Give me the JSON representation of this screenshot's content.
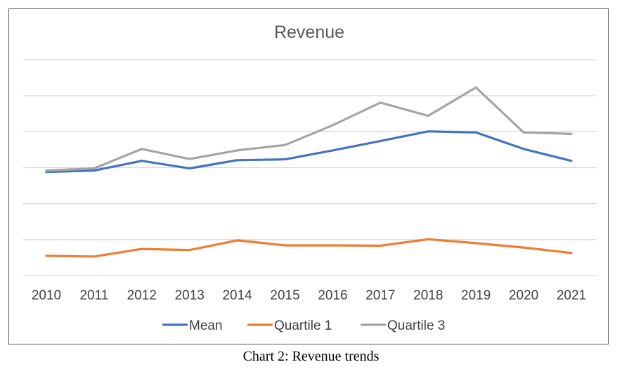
{
  "chart_data": {
    "type": "line",
    "title": "Revenue",
    "xlabel": "",
    "ylabel": "",
    "categories": [
      "2010",
      "2011",
      "2012",
      "2013",
      "2014",
      "2015",
      "2016",
      "2017",
      "2018",
      "2019",
      "2020",
      "2021"
    ],
    "ylim": [
      0,
      6
    ],
    "grid": true,
    "y_tick_labels_shown": false,
    "legend_position": "bottom",
    "series": [
      {
        "name": "Mean",
        "color": "#4472C4",
        "values": [
          2.88,
          2.92,
          3.19,
          2.98,
          3.21,
          3.23,
          3.48,
          3.74,
          4.01,
          3.98,
          3.52,
          3.19
        ]
      },
      {
        "name": "Quartile 1",
        "color": "#ED7D31",
        "values": [
          0.55,
          0.53,
          0.74,
          0.71,
          0.98,
          0.84,
          0.84,
          0.83,
          1.01,
          0.9,
          0.78,
          0.63
        ]
      },
      {
        "name": "Quartile 3",
        "color": "#A5A5A5",
        "values": [
          2.92,
          2.98,
          3.52,
          3.24,
          3.48,
          3.63,
          4.18,
          4.81,
          4.44,
          5.23,
          3.98,
          3.94
        ]
      }
    ]
  },
  "caption": "Chart 2: Revenue trends"
}
